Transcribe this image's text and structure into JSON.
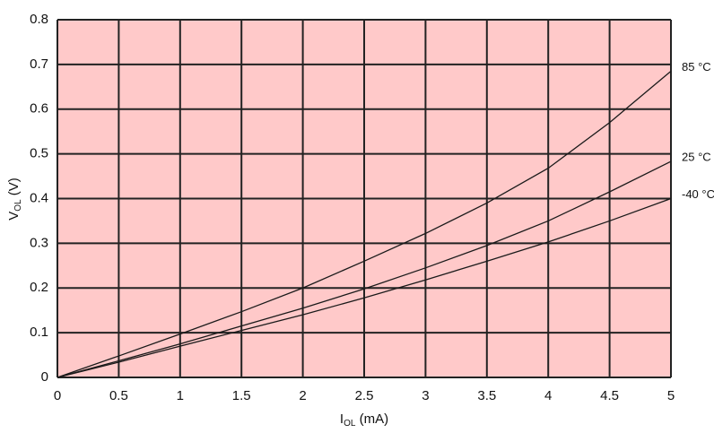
{
  "chart_data": {
    "type": "line",
    "xlabel": {
      "text": "I",
      "sub": "OL",
      "rest": " (mA)"
    },
    "ylabel": {
      "text": "V",
      "sub": "OL",
      "rest": " (V)"
    },
    "x": [
      0,
      0.5,
      1,
      1.5,
      2,
      2.5,
      3,
      3.5,
      4,
      4.5,
      5
    ],
    "series": [
      {
        "name": "85 °C",
        "color": "#1a1a1a",
        "values": [
          0,
          0.048,
          0.097,
          0.147,
          0.2,
          0.26,
          0.322,
          0.39,
          0.468,
          0.57,
          0.685
        ]
      },
      {
        "name": "25 °C",
        "color": "#1a1a1a",
        "values": [
          0,
          0.037,
          0.075,
          0.115,
          0.155,
          0.198,
          0.245,
          0.295,
          0.35,
          0.415,
          0.483
        ]
      },
      {
        "name": "-40 °C",
        "color": "#1a1a1a",
        "values": [
          0,
          0.034,
          0.07,
          0.105,
          0.14,
          0.178,
          0.218,
          0.26,
          0.303,
          0.35,
          0.4
        ]
      }
    ],
    "xlim": [
      0,
      5
    ],
    "xticks": [
      0,
      0.5,
      1,
      1.5,
      2,
      2.5,
      3,
      3.5,
      4,
      4.5,
      5
    ],
    "ylim": [
      0,
      0.8
    ],
    "yticks": [
      0,
      0.1,
      0.2,
      0.3,
      0.4,
      0.5,
      0.6,
      0.7,
      0.8
    ],
    "grid": true,
    "background": "#ffc9c9"
  }
}
